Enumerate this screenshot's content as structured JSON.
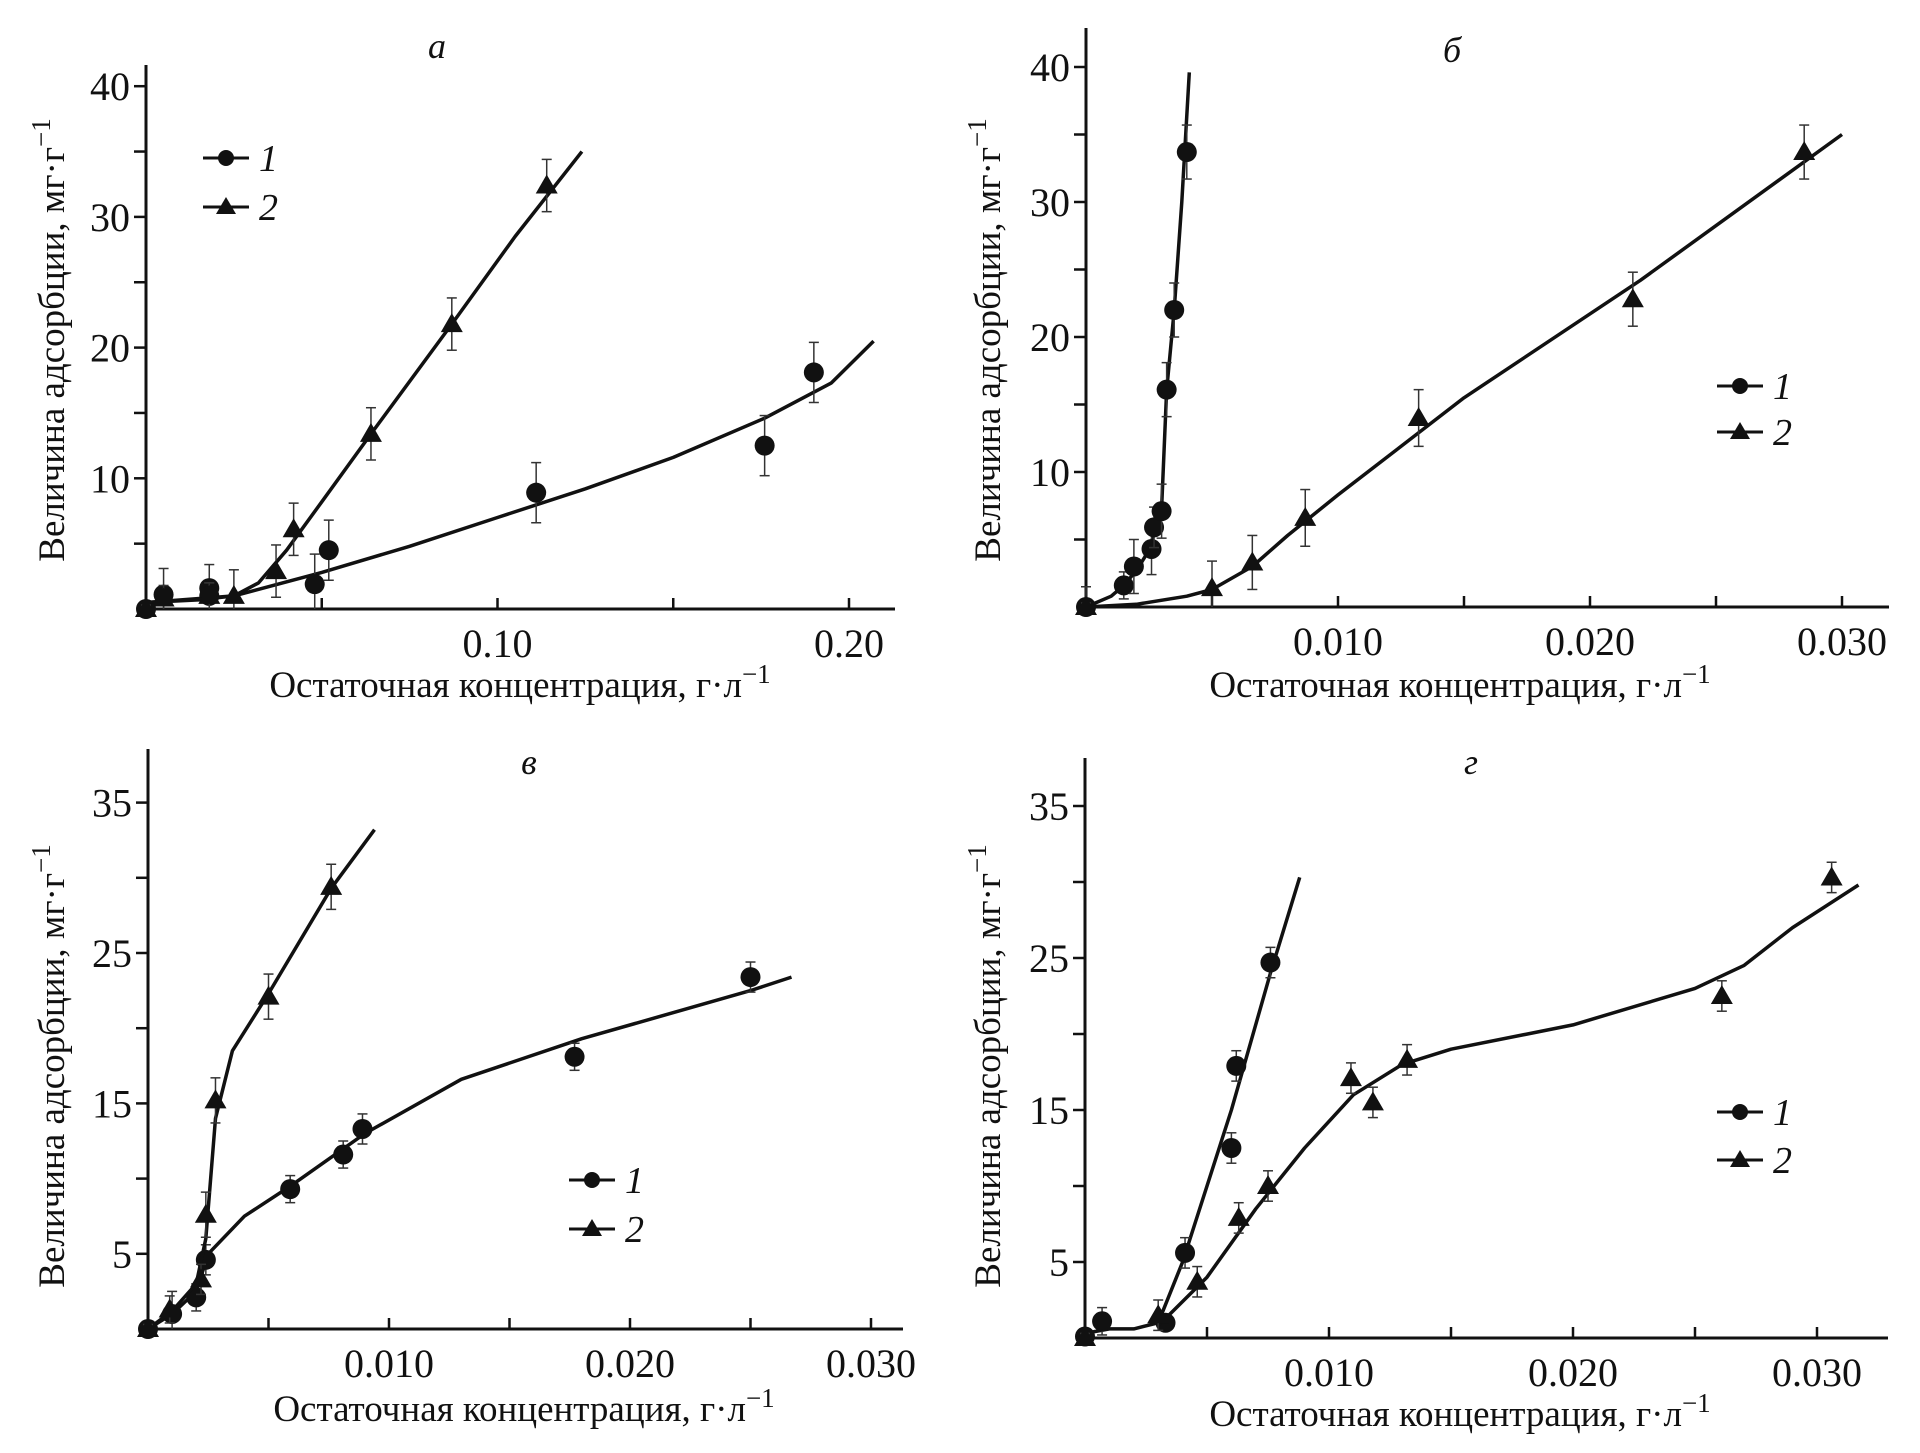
{
  "chart_data": [
    {
      "type": "scatter",
      "panel_label": "а",
      "xlabel": "Остаточная концентрация, г·л",
      "xlabel_sup": "−1",
      "ylabel": "Величина адсорбции, мг·г",
      "ylabel_sup": "−1",
      "xlim": [
        0,
        0.215
      ],
      "ylim": [
        0,
        41
      ],
      "x_tick_labels": [
        "0.10",
        "0.20"
      ],
      "x_tick_values": [
        0.1,
        0.2
      ],
      "x_minor_ticks": [
        0.05,
        0.15
      ],
      "y_tick_labels": [
        "10",
        "20",
        "30",
        "40"
      ],
      "y_tick_values": [
        10,
        20,
        30,
        40
      ],
      "y_minor_ticks": [
        5,
        15,
        25,
        35
      ],
      "legend_position": "top-left",
      "series": [
        {
          "name": "1",
          "marker": "circle",
          "x": [
            0,
            0.005,
            0.018,
            0.018,
            0.048,
            0.052,
            0.111,
            0.176,
            0.19
          ],
          "y": [
            0,
            1.1,
            1.6,
            1.0,
            1.9,
            4.5,
            8.9,
            12.5,
            18.1
          ],
          "yerr": [
            0.4,
            2.0,
            1.8,
            1.0,
            2.3,
            2.3,
            2.3,
            2.3,
            2.3
          ],
          "fit_x": [
            0,
            0.01,
            0.025,
            0.05,
            0.075,
            0.1,
            0.125,
            0.15,
            0.176,
            0.195,
            0.207
          ],
          "fit_y": [
            0.5,
            0.7,
            1.0,
            2.8,
            4.8,
            7.0,
            9.2,
            11.6,
            14.6,
            17.3,
            20.5
          ]
        },
        {
          "name": "2",
          "marker": "triangle",
          "x": [
            0,
            0.005,
            0.018,
            0.025,
            0.037,
            0.042,
            0.064,
            0.087,
            0.114
          ],
          "y": [
            0,
            0.8,
            1.0,
            1.0,
            2.9,
            6.1,
            13.4,
            21.8,
            32.4
          ],
          "yerr": [
            0.3,
            1.0,
            1.0,
            2.0,
            2.0,
            2.0,
            2.0,
            2.0,
            2.0
          ],
          "fit_x": [
            0,
            0.015,
            0.025,
            0.032,
            0.04,
            0.05,
            0.064,
            0.087,
            0.105,
            0.124
          ],
          "fit_y": [
            0.5,
            0.7,
            1.0,
            2.0,
            4.5,
            8.2,
            13.4,
            21.8,
            28.5,
            35.0
          ]
        }
      ]
    },
    {
      "type": "scatter",
      "panel_label": "б",
      "xlabel": "Остаточная концентрация, г·л",
      "xlabel_sup": "−1",
      "ylabel": "Величина адсорбции, мг·г",
      "ylabel_sup": "−1",
      "xlim": [
        0,
        0.032
      ],
      "ylim": [
        0,
        43
      ],
      "x_tick_labels": [
        "0.010",
        "0.020",
        "0.030"
      ],
      "x_tick_values": [
        0.01,
        0.02,
        0.03
      ],
      "x_minor_ticks": [
        0.005,
        0.015,
        0.025
      ],
      "y_tick_labels": [
        "10",
        "20",
        "30",
        "40"
      ],
      "y_tick_values": [
        10,
        20,
        30,
        40
      ],
      "y_minor_ticks": [
        5,
        15,
        25,
        35
      ],
      "legend_position": "center-right",
      "series": [
        {
          "name": "1",
          "marker": "circle",
          "x": [
            0,
            0.0015,
            0.0019,
            0.0026,
            0.0027,
            0.003,
            0.0032,
            0.0035,
            0.004
          ],
          "y": [
            0,
            1.6,
            3.0,
            4.3,
            5.9,
            7.1,
            16.1,
            22.0,
            33.7
          ],
          "yerr": [
            1.5,
            1.0,
            2.0,
            1.9,
            1.5,
            2.0,
            2.0,
            2.0,
            2.0
          ],
          "fit_x": [
            0,
            0.001,
            0.0015,
            0.002,
            0.0025,
            0.003,
            0.0032,
            0.0035,
            0.0038,
            0.0041
          ],
          "fit_y": [
            0,
            0.8,
            1.6,
            2.7,
            4.2,
            7.3,
            16.0,
            22.0,
            30.0,
            39.6
          ]
        },
        {
          "name": "2",
          "marker": "triangle",
          "x": [
            0,
            0.005,
            0.0066,
            0.0087,
            0.0132,
            0.0217,
            0.0285
          ],
          "y": [
            0,
            1.4,
            3.3,
            6.6,
            14.0,
            22.8,
            33.7
          ],
          "yerr": [
            0.3,
            2.0,
            2.0,
            2.1,
            2.1,
            2.0,
            2.0
          ],
          "fit_x": [
            0,
            0.002,
            0.004,
            0.005,
            0.0066,
            0.008,
            0.01,
            0.015,
            0.022,
            0.03
          ],
          "fit_y": [
            0,
            0.2,
            0.8,
            1.3,
            3.0,
            5.3,
            8.3,
            15.5,
            24.2,
            35.0
          ]
        }
      ]
    },
    {
      "type": "scatter",
      "panel_label": "в",
      "xlabel": "Остаточная концентрация, г·л",
      "xlabel_sup": "−1",
      "ylabel": "Величина адсорбции, мг·г",
      "ylabel_sup": "−1",
      "xlim": [
        0,
        0.032
      ],
      "ylim": [
        0,
        39
      ],
      "x_tick_labels": [
        "0.010",
        "0.020",
        "0.030"
      ],
      "x_tick_values": [
        0.01,
        0.02,
        0.03
      ],
      "x_minor_ticks": [
        0.005,
        0.015,
        0.025
      ],
      "y_tick_labels": [
        "5",
        "15",
        "25",
        "35"
      ],
      "y_tick_values": [
        5,
        15,
        25,
        35
      ],
      "y_minor_ticks": [
        10,
        20,
        30
      ],
      "legend_position": "center-right",
      "series": [
        {
          "name": "1",
          "marker": "circle",
          "x": [
            0,
            0.001,
            0.002,
            0.0024,
            0.0059,
            0.0081,
            0.0089,
            0.0177,
            0.025
          ],
          "y": [
            0,
            1.0,
            2.1,
            4.6,
            9.3,
            11.6,
            13.3,
            18.1,
            23.4
          ],
          "yerr": [
            0.3,
            1.5,
            0.9,
            1.0,
            0.9,
            0.9,
            1.0,
            0.9,
            1.0
          ],
          "fit_x": [
            0,
            0.001,
            0.002,
            0.0025,
            0.004,
            0.006,
            0.009,
            0.013,
            0.018,
            0.025,
            0.0267
          ],
          "fit_y": [
            0,
            1.0,
            2.5,
            5.0,
            7.5,
            9.6,
            13.0,
            16.6,
            19.3,
            22.5,
            23.4
          ]
        },
        {
          "name": "2",
          "marker": "triangle",
          "x": [
            0,
            0.0009,
            0.0022,
            0.0024,
            0.0028,
            0.005,
            0.0076
          ],
          "y": [
            0,
            1.3,
            3.3,
            7.6,
            15.2,
            22.1,
            29.4
          ],
          "yerr": [
            0.3,
            0.9,
            1.0,
            1.5,
            1.5,
            1.5,
            1.5
          ],
          "fit_x": [
            0,
            0.001,
            0.002,
            0.0024,
            0.0028,
            0.0035,
            0.005,
            0.0076,
            0.0094
          ],
          "fit_y": [
            0,
            1.2,
            3.0,
            6.0,
            14.0,
            18.5,
            22.3,
            29.3,
            33.2
          ]
        }
      ]
    },
    {
      "type": "scatter",
      "panel_label": "г",
      "xlabel": "Остаточная концентрация, г·л",
      "xlabel_sup": "−1",
      "ylabel": "Величина адсорбции, мг·г",
      "ylabel_sup": "−1",
      "xlim": [
        0,
        0.0335
      ],
      "ylim": [
        0,
        38
      ],
      "x_tick_labels": [
        "0.010",
        "0.020",
        "0.030"
      ],
      "x_tick_values": [
        0.01,
        0.02,
        0.03
      ],
      "x_minor_ticks": [
        0.005,
        0.015,
        0.025
      ],
      "y_tick_labels": [
        "5",
        "15",
        "25",
        "35"
      ],
      "y_tick_values": [
        5,
        15,
        25,
        35
      ],
      "y_minor_ticks": [
        10,
        20,
        30
      ],
      "legend_position": "center-right",
      "series": [
        {
          "name": "1",
          "marker": "circle",
          "x": [
            0,
            0.0007,
            0.0033,
            0.0041,
            0.006,
            0.0062,
            0.0076
          ],
          "y": [
            0.1,
            1.1,
            1.0,
            5.6,
            12.5,
            17.9,
            24.7
          ],
          "yerr": [
            0.3,
            0.9,
            0.5,
            1.0,
            1.0,
            1.0,
            1.0
          ],
          "fit_x": [
            0,
            0.001,
            0.002,
            0.003,
            0.004,
            0.006,
            0.0076,
            0.0088
          ],
          "fit_y": [
            0.3,
            0.6,
            0.6,
            1.0,
            5.0,
            15.0,
            24.0,
            30.3
          ]
        },
        {
          "name": "2",
          "marker": "triangle",
          "x": [
            0,
            0.003,
            0.0046,
            0.0063,
            0.0075,
            0.0109,
            0.0118,
            0.0132,
            0.0261,
            0.0306
          ],
          "y": [
            0,
            1.5,
            3.7,
            7.9,
            10.0,
            17.1,
            15.5,
            18.3,
            22.5,
            30.3
          ],
          "yerr": [
            0.3,
            1.0,
            1.0,
            1.0,
            1.0,
            1.0,
            1.0,
            1.0,
            1.0,
            1.0
          ],
          "fit_x": [
            0.003,
            0.005,
            0.007,
            0.009,
            0.011,
            0.013,
            0.015,
            0.02,
            0.025,
            0.027,
            0.029,
            0.0317
          ],
          "fit_y": [
            0.8,
            4.0,
            8.5,
            12.5,
            16.0,
            18.0,
            19.0,
            20.6,
            23.0,
            24.5,
            27.0,
            29.8
          ]
        }
      ]
    }
  ]
}
